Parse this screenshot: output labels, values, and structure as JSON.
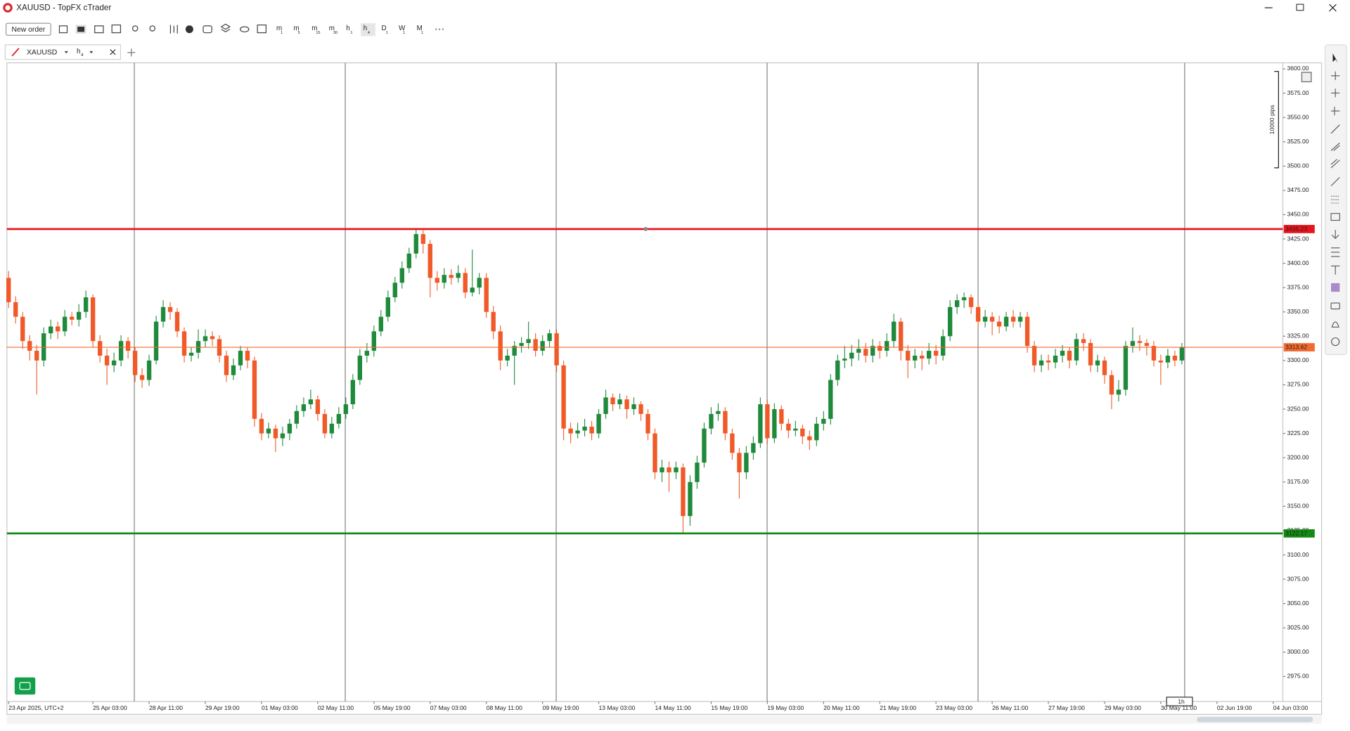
{
  "window": {
    "title": "XAUUSD - TopFX cTrader"
  },
  "toolbar": {
    "new_order": "New order",
    "timeframes": [
      {
        "letter": "m",
        "sub": "1"
      },
      {
        "letter": "m",
        "sub": "5"
      },
      {
        "letter": "m",
        "sub": "15"
      },
      {
        "letter": "m",
        "sub": "30"
      },
      {
        "letter": "h",
        "sub": "1"
      },
      {
        "letter": "h",
        "sub": "4"
      },
      {
        "letter": "D",
        "sub": "1"
      },
      {
        "letter": "W",
        "sub": "1"
      },
      {
        "letter": "M",
        "sub": "1"
      }
    ]
  },
  "tab": {
    "symbol": "XAUUSD",
    "timeframe": {
      "letter": "h",
      "sub": "4"
    }
  },
  "chart_data": {
    "type": "candlestick",
    "pips_label": "10000 pips",
    "timeframe_marker": "1h",
    "up_color": "#1f8a3b",
    "down_color": "#f05a28",
    "ylim": [
      2949.3,
      3604.4
    ],
    "yticks": [
      {
        "value": 3600,
        "label": "3600.00"
      },
      {
        "value": 3575,
        "label": "3575.00"
      },
      {
        "value": 3550,
        "label": "3550.00"
      },
      {
        "value": 3525,
        "label": "3525.00"
      },
      {
        "value": 3500,
        "label": "3500.00"
      },
      {
        "value": 3475,
        "label": "3475.00"
      },
      {
        "value": 3450,
        "label": "3450.00"
      },
      {
        "value": 3425,
        "label": "3425.00"
      },
      {
        "value": 3400,
        "label": "3400.00"
      },
      {
        "value": 3375,
        "label": "3375.00"
      },
      {
        "value": 3350,
        "label": "3350.00"
      },
      {
        "value": 3325,
        "label": "3325.00"
      },
      {
        "value": 3300,
        "label": "3300.00"
      },
      {
        "value": 3275,
        "label": "3275.00"
      },
      {
        "value": 3250,
        "label": "3250.00"
      },
      {
        "value": 3225,
        "label": "3225.00"
      },
      {
        "value": 3200,
        "label": "3200.00"
      },
      {
        "value": 3175,
        "label": "3175.00"
      },
      {
        "value": 3150,
        "label": "3150.00"
      },
      {
        "value": 3125,
        "label": "3125.00"
      },
      {
        "value": 3100,
        "label": "3100.00"
      },
      {
        "value": 3075,
        "label": "3075.00"
      },
      {
        "value": 3050,
        "label": "3050.00"
      },
      {
        "value": 3025,
        "label": "3025.00"
      },
      {
        "value": 3000,
        "label": "3000.00"
      },
      {
        "value": 2975,
        "label": "2975.00"
      }
    ],
    "x_labels": [
      "23 Apr 2025, UTC+2",
      "25 Apr 03:00",
      "28 Apr 11:00",
      "29 Apr 19:00",
      "01 May 03:00",
      "02 May 11:00",
      "05 May 19:00",
      "07 May 03:00",
      "08 May 11:00",
      "09 May 19:00",
      "13 May 03:00",
      "14 May 11:00",
      "15 May 19:00",
      "19 May 03:00",
      "20 May 11:00",
      "21 May 19:00",
      "23 May 03:00",
      "26 May 11:00",
      "27 May 19:00",
      "29 May 03:00",
      "30 May 11:00",
      "02 Jun 19:00",
      "04 Jun 03:00"
    ],
    "hlines": [
      {
        "value": 3435.23,
        "color": "#e8141c"
      },
      {
        "value": 3313.62,
        "color": "#f26a2e"
      },
      {
        "value": 3122.17,
        "color": "#138a13"
      }
    ],
    "open": [
      3385,
      3360,
      3345,
      3320,
      3310,
      3300,
      3328,
      3335,
      3330,
      3345,
      3342,
      3350,
      3365,
      3320,
      3305,
      3295,
      3300,
      3320,
      3310,
      3285,
      3280,
      3300,
      3340,
      3355,
      3350,
      3330,
      3305,
      3308,
      3320,
      3325,
      3322,
      3305,
      3285,
      3295,
      3310,
      3300,
      3240,
      3225,
      3230,
      3220,
      3225,
      3235,
      3248,
      3255,
      3260,
      3245,
      3225,
      3235,
      3245,
      3255,
      3280,
      3305,
      3310,
      3330,
      3345,
      3365,
      3380,
      3395,
      3410,
      3430,
      3420,
      3385,
      3380,
      3388,
      3385,
      3390,
      3370,
      3375,
      3385,
      3350,
      3330,
      3300,
      3305,
      3315,
      3318,
      3322,
      3310,
      3320,
      3328,
      3295,
      3230,
      3225,
      3228,
      3232,
      3225,
      3245,
      3262,
      3255,
      3260,
      3250,
      3255,
      3245,
      3225,
      3185,
      3190,
      3185,
      3190,
      3140,
      3175,
      3195,
      3230,
      3245,
      3248,
      3225,
      3205,
      3185,
      3205,
      3215,
      3255,
      3220,
      3250,
      3235,
      3228,
      3230,
      3222,
      3218,
      3235,
      3240,
      3280,
      3300,
      3302,
      3308,
      3312,
      3305,
      3315,
      3310,
      3320,
      3340,
      3310,
      3300,
      3305,
      3302,
      3310,
      3305,
      3325,
      3355,
      3362,
      3365,
      3355,
      3340,
      3345,
      3340,
      3335,
      3345,
      3340,
      3345,
      3315,
      3295,
      3300,
      3298,
      3305,
      3310,
      3300,
      3322,
      3318,
      3295,
      3300,
      3285,
      3265,
      3270,
      3315,
      3320,
      3318,
      3315,
      3300,
      3298,
      3305,
      3300
    ],
    "high": [
      3392,
      3366,
      3350,
      3326,
      3316,
      3334,
      3342,
      3340,
      3352,
      3350,
      3358,
      3372,
      3368,
      3326,
      3312,
      3308,
      3326,
      3324,
      3314,
      3292,
      3306,
      3346,
      3362,
      3360,
      3354,
      3334,
      3314,
      3332,
      3332,
      3330,
      3326,
      3310,
      3302,
      3315,
      3314,
      3304,
      3246,
      3236,
      3234,
      3232,
      3240,
      3254,
      3262,
      3270,
      3264,
      3250,
      3242,
      3252,
      3262,
      3286,
      3312,
      3318,
      3336,
      3352,
      3372,
      3386,
      3402,
      3416,
      3436,
      3434,
      3424,
      3392,
      3395,
      3394,
      3398,
      3395,
      3414,
      3390,
      3390,
      3356,
      3336,
      3312,
      3320,
      3324,
      3340,
      3328,
      3326,
      3332,
      3332,
      3300,
      3236,
      3236,
      3240,
      3238,
      3250,
      3270,
      3266,
      3266,
      3264,
      3262,
      3258,
      3250,
      3230,
      3198,
      3196,
      3196,
      3194,
      3182,
      3202,
      3236,
      3252,
      3256,
      3252,
      3230,
      3210,
      3212,
      3222,
      3262,
      3260,
      3256,
      3254,
      3240,
      3238,
      3234,
      3228,
      3242,
      3248,
      3286,
      3306,
      3315,
      3316,
      3322,
      3318,
      3322,
      3320,
      3328,
      3348,
      3344,
      3316,
      3312,
      3310,
      3318,
      3316,
      3332,
      3362,
      3368,
      3370,
      3368,
      3360,
      3352,
      3350,
      3346,
      3350,
      3352,
      3350,
      3350,
      3320,
      3306,
      3306,
      3312,
      3316,
      3314,
      3328,
      3328,
      3322,
      3306,
      3304,
      3290,
      3280,
      3320,
      3334,
      3326,
      3322,
      3320,
      3306,
      3312,
      3310,
      3318
    ],
    "low": [
      3354,
      3338,
      3312,
      3300,
      3265,
      3294,
      3322,
      3322,
      3325,
      3336,
      3335,
      3344,
      3314,
      3298,
      3275,
      3288,
      3294,
      3302,
      3278,
      3272,
      3274,
      3296,
      3334,
      3342,
      3324,
      3298,
      3299,
      3302,
      3314,
      3315,
      3298,
      3278,
      3280,
      3290,
      3292,
      3232,
      3218,
      3220,
      3206,
      3212,
      3218,
      3230,
      3242,
      3250,
      3238,
      3220,
      3220,
      3230,
      3240,
      3250,
      3275,
      3298,
      3304,
      3325,
      3340,
      3360,
      3374,
      3390,
      3405,
      3410,
      3365,
      3372,
      3374,
      3378,
      3380,
      3364,
      3366,
      3368,
      3344,
      3322,
      3290,
      3294,
      3275,
      3308,
      3312,
      3304,
      3305,
      3314,
      3288,
      3218,
      3215,
      3220,
      3222,
      3218,
      3220,
      3240,
      3248,
      3250,
      3240,
      3244,
      3238,
      3218,
      3178,
      3175,
      3165,
      3178,
      3122,
      3130,
      3168,
      3190,
      3224,
      3238,
      3218,
      3198,
      3158,
      3178,
      3198,
      3210,
      3214,
      3215,
      3228,
      3220,
      3222,
      3214,
      3208,
      3212,
      3228,
      3234,
      3274,
      3292,
      3294,
      3300,
      3298,
      3298,
      3302,
      3304,
      3314,
      3300,
      3282,
      3292,
      3290,
      3296,
      3296,
      3300,
      3320,
      3348,
      3354,
      3348,
      3334,
      3334,
      3326,
      3328,
      3330,
      3334,
      3334,
      3308,
      3288,
      3288,
      3290,
      3292,
      3298,
      3292,
      3295,
      3310,
      3288,
      3288,
      3276,
      3250,
      3258,
      3264,
      3308,
      3310,
      3305,
      3294,
      3275,
      3292,
      3294,
      3296
    ],
    "close": [
      3360,
      3345,
      3320,
      3310,
      3300,
      3328,
      3335,
      3330,
      3345,
      3342,
      3350,
      3365,
      3320,
      3305,
      3295,
      3300,
      3320,
      3310,
      3285,
      3280,
      3300,
      3340,
      3355,
      3350,
      3330,
      3305,
      3308,
      3320,
      3325,
      3322,
      3305,
      3285,
      3295,
      3310,
      3300,
      3240,
      3225,
      3230,
      3220,
      3225,
      3235,
      3248,
      3255,
      3260,
      3245,
      3225,
      3235,
      3245,
      3255,
      3280,
      3305,
      3310,
      3330,
      3345,
      3365,
      3380,
      3395,
      3410,
      3430,
      3420,
      3385,
      3380,
      3388,
      3385,
      3390,
      3370,
      3375,
      3385,
      3350,
      3330,
      3300,
      3305,
      3315,
      3318,
      3322,
      3310,
      3320,
      3328,
      3295,
      3230,
      3225,
      3228,
      3232,
      3225,
      3245,
      3262,
      3255,
      3260,
      3250,
      3255,
      3245,
      3225,
      3185,
      3190,
      3185,
      3190,
      3140,
      3175,
      3195,
      3230,
      3245,
      3248,
      3225,
      3205,
      3185,
      3205,
      3215,
      3255,
      3220,
      3250,
      3235,
      3228,
      3230,
      3222,
      3218,
      3235,
      3240,
      3280,
      3300,
      3302,
      3308,
      3312,
      3305,
      3315,
      3310,
      3320,
      3340,
      3310,
      3300,
      3305,
      3302,
      3310,
      3305,
      3325,
      3355,
      3362,
      3365,
      3355,
      3340,
      3345,
      3340,
      3335,
      3345,
      3340,
      3345,
      3315,
      3295,
      3300,
      3298,
      3305,
      3310,
      3300,
      3322,
      3318,
      3295,
      3300,
      3285,
      3265,
      3270,
      3315,
      3320,
      3318,
      3315,
      3300,
      3298,
      3305,
      3300,
      3313.62
    ]
  }
}
